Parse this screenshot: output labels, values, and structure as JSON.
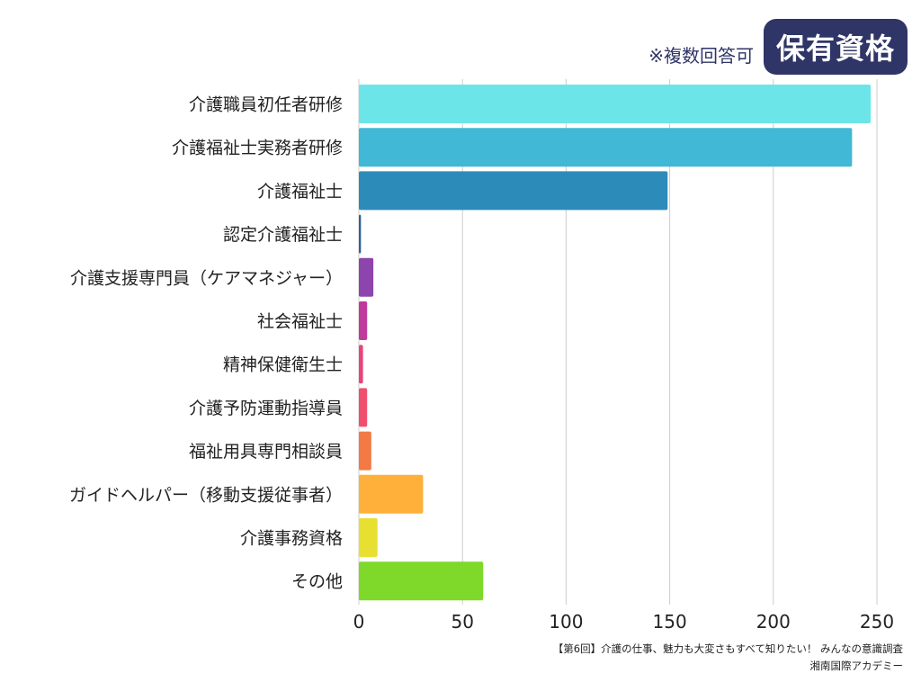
{
  "header": {
    "badge": "保有資格",
    "note": "※複数回答可"
  },
  "chart_data": {
    "type": "bar",
    "orientation": "horizontal",
    "categories": [
      "介護職員初任者研修",
      "介護福祉士実務者研修",
      "介護福祉士",
      "認定介護福祉士",
      "介護支援専門員（ケアマネジャー）",
      "社会福祉士",
      "精神保健衛生士",
      "介護予防運動指導員",
      "福祉用具専門相談員",
      "ガイドヘルパー（移動支援従事者）",
      "介護事務資格",
      "その他"
    ],
    "values": [
      247,
      238,
      149,
      1,
      7,
      4,
      2,
      4,
      6,
      31,
      9,
      60
    ],
    "colors": [
      "#6ce5e8",
      "#41b8d5",
      "#2d8bba",
      "#2f5f98",
      "#8e44ad",
      "#c03a9c",
      "#e8447a",
      "#f0506e",
      "#f37a45",
      "#ffb03b",
      "#e8e030",
      "#7ed92a"
    ],
    "x_ticks": [
      0,
      50,
      100,
      150,
      200,
      250
    ],
    "xlim": [
      0,
      250
    ],
    "grid": true,
    "title": "",
    "xlabel": "",
    "ylabel": ""
  },
  "footer": {
    "line1": "【第6回】介護の仕事、魅力も大変さもすべて知りたい！ みんなの意識調査",
    "line2": "湘南国際アカデミー"
  }
}
